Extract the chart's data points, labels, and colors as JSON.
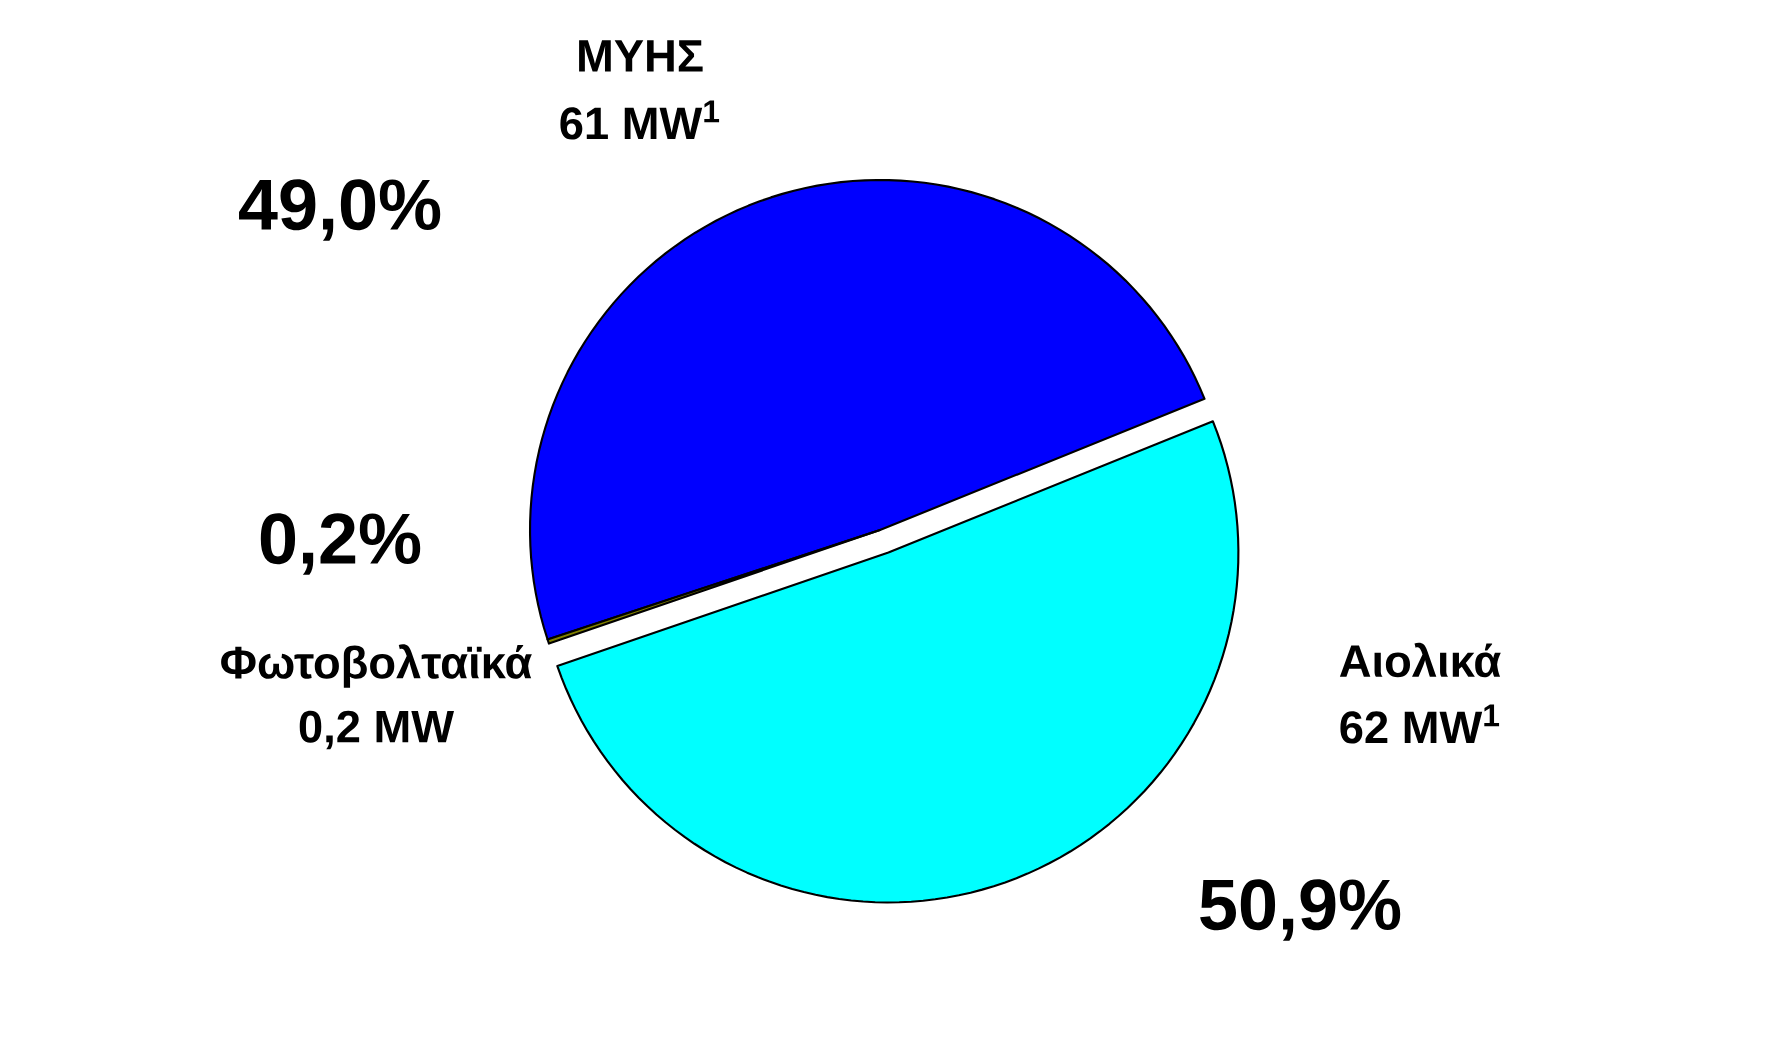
{
  "chart_data": {
    "type": "pie",
    "categories": [
      "ΜΥΗΣ",
      "Φωτοβολταϊκά",
      "Αιολικά"
    ],
    "values": [
      49.0,
      0.2,
      50.9
    ],
    "colors": [
      "#0000ff",
      "#808000",
      "#00ffff"
    ],
    "value_labels": [
      "49,0%",
      "0,2%",
      "50,9%"
    ],
    "annotations": [
      "61 MW$^{1}$",
      "0,2 MW",
      "62 MW$^{1}$"
    ]
  }
}
